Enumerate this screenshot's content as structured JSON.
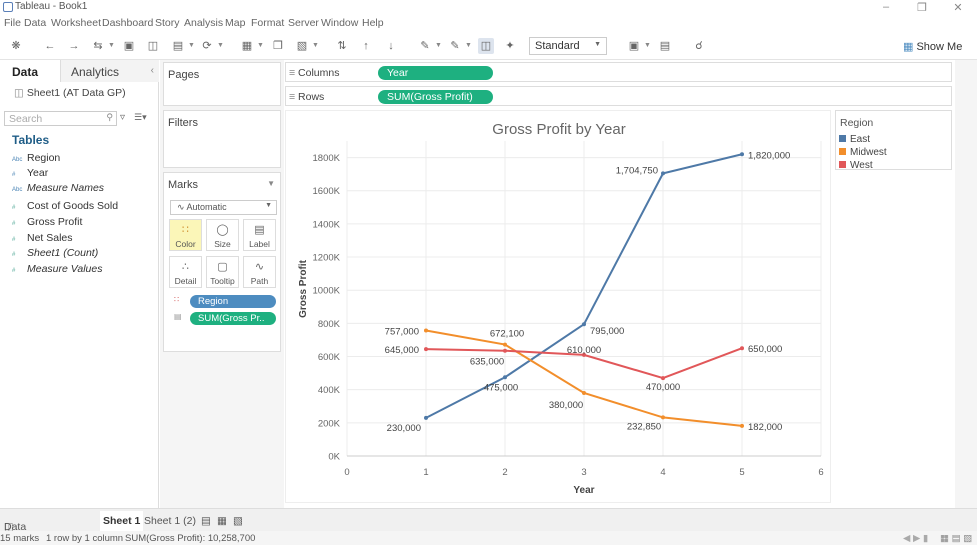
{
  "window": {
    "title": "Tableau - Book1"
  },
  "menu": [
    "File",
    "Data",
    "Worksheet",
    "Dashboard",
    "Story",
    "Analysis",
    "Map",
    "Format",
    "Server",
    "Window",
    "Help"
  ],
  "toolbar": {
    "fit_select": "Standard",
    "show_me": "Show Me"
  },
  "data_pane": {
    "tab_data": "Data",
    "tab_analytics": "Analytics",
    "datasource": "Sheet1 (AT Data GP)",
    "search_placeholder": "Search",
    "tables_heading": "Tables",
    "fields": [
      {
        "label": "Region",
        "kind": "dim",
        "italic": false
      },
      {
        "label": "Year",
        "kind": "dim",
        "italic": false
      },
      {
        "label": "Measure Names",
        "kind": "dim",
        "italic": true
      },
      {
        "label": "Cost of Goods Sold",
        "kind": "mea",
        "italic": false
      },
      {
        "label": "Gross Profit",
        "kind": "mea",
        "italic": false
      },
      {
        "label": "Net Sales",
        "kind": "mea",
        "italic": false
      },
      {
        "label": "Sheet1 (Count)",
        "kind": "mea",
        "italic": true
      },
      {
        "label": "Measure Values",
        "kind": "mea",
        "italic": true
      }
    ]
  },
  "shelves": {
    "pages": "Pages",
    "filters": "Filters",
    "marks": "Marks",
    "mark_type": "Automatic",
    "buttons": [
      "Color",
      "Size",
      "Label",
      "Detail",
      "Tooltip",
      "Path"
    ],
    "mark_pills": [
      "Region",
      "SUM(Gross Pr.."
    ],
    "columns_label": "Columns",
    "rows_label": "Rows",
    "columns_pill": "Year",
    "rows_pill": "SUM(Gross Profit)"
  },
  "legend": {
    "title": "Region",
    "items": [
      {
        "name": "East",
        "color": "#4e79a7"
      },
      {
        "name": "Midwest",
        "color": "#f28e2b"
      },
      {
        "name": "West",
        "color": "#e15759"
      }
    ]
  },
  "chart_data": {
    "type": "line",
    "title": "Gross Profit by Year",
    "xlabel": "Year",
    "ylabel": "Gross Profit",
    "x": [
      1,
      2,
      3,
      4,
      5
    ],
    "xlim": [
      0,
      6
    ],
    "ylim": [
      0,
      1900000
    ],
    "x_ticks": [
      "0",
      "1",
      "2",
      "3",
      "4",
      "5",
      "6"
    ],
    "y_ticks": [
      {
        "value": 0,
        "label": "0K"
      },
      {
        "value": 200000,
        "label": "200K"
      },
      {
        "value": 400000,
        "label": "400K"
      },
      {
        "value": 600000,
        "label": "600K"
      },
      {
        "value": 800000,
        "label": "800K"
      },
      {
        "value": 1000000,
        "label": "1000K"
      },
      {
        "value": 1200000,
        "label": "1200K"
      },
      {
        "value": 1400000,
        "label": "1400K"
      },
      {
        "value": 1600000,
        "label": "1600K"
      },
      {
        "value": 1800000,
        "label": "1800K"
      }
    ],
    "series": [
      {
        "name": "East",
        "color": "#4e79a7",
        "values": [
          230000,
          475000,
          795000,
          1704750,
          1820000
        ],
        "labels": [
          "230,000",
          "475,000",
          "795,000",
          "1,704,750",
          "1,820,000"
        ]
      },
      {
        "name": "Midwest",
        "color": "#f28e2b",
        "values": [
          757000,
          672100,
          380000,
          232850,
          182000
        ],
        "labels": [
          "757,000",
          "672,100",
          "380,000",
          "232,850",
          "182,000"
        ]
      },
      {
        "name": "West",
        "color": "#e15759",
        "values": [
          645000,
          635000,
          610000,
          470000,
          650000
        ],
        "labels": [
          "645,000",
          "635,000",
          "610,000",
          "470,000",
          "650,000"
        ]
      }
    ],
    "grid": true
  },
  "sheets": {
    "data_source": "Data Source",
    "sheet1": "Sheet 1",
    "sheet2": "Sheet 1 (2)"
  },
  "status": {
    "marks": "15 marks",
    "rows": "1 row by 1 column",
    "sum": "SUM(Gross Profit): 10,258,700"
  }
}
